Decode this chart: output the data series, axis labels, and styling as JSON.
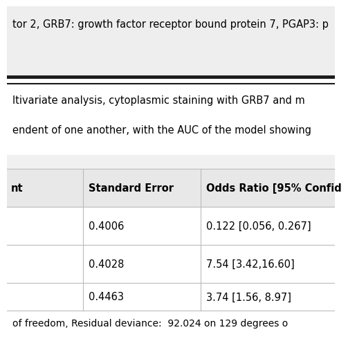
{
  "top_text": "tor 2, GRB7: growth factor receptor bound protein 7, PGAP3: p",
  "middle_text_line1": "ltivariate analysis, cytoplasmic staining with GRB7 and m",
  "middle_text_line2": "endent of one another, with the AUC of the model showing",
  "header_col1": "nt",
  "header_col2": "Standard Error",
  "header_col3": "Odds Ratio [95% Confid",
  "row1_col2": "0.4006",
  "row1_col3": "0.122 [0.056, 0.267]",
  "row2_col2": "0.4028",
  "row2_col3": "7.54 [3.42,16.60]",
  "row3_col2": "0.4463",
  "row3_col3": "3.74 [1.56, 8.97]",
  "bottom_text": "of freedom, Residual deviance:  92.024 on 129 degrees o",
  "bg_color": "#ffffff",
  "header_bg": "#e8e8e8",
  "top_bg": "#eeeeee",
  "text_color": "#000000",
  "border_dark": "#1a1a1a",
  "border_light": "#bbbbbb",
  "font_size": 10.5
}
